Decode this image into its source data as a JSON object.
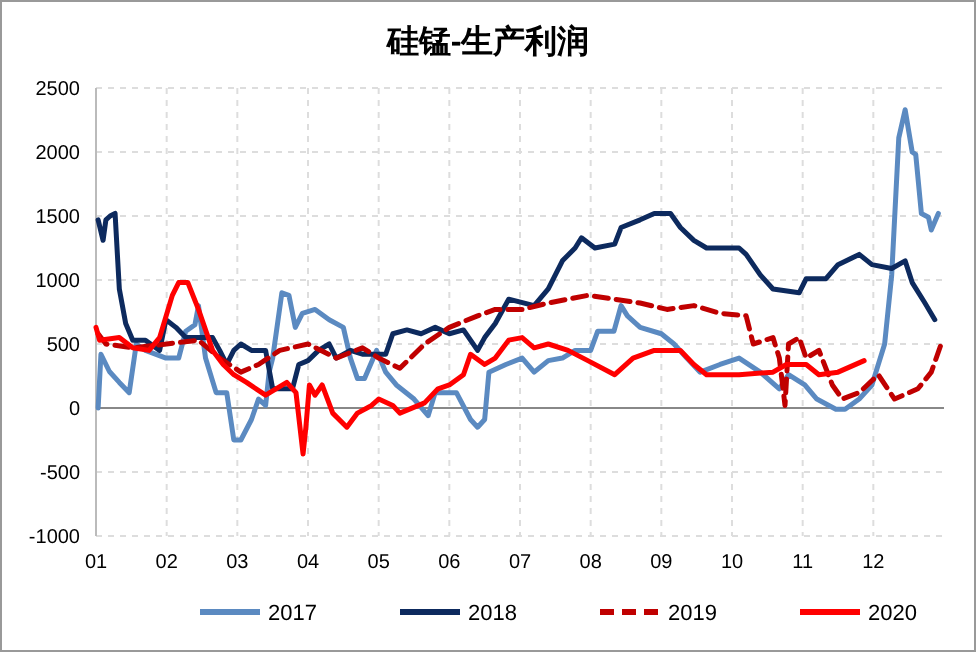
{
  "chart_data": {
    "type": "line",
    "title": "硅锰-生产利润",
    "xlim": [
      1,
      13
    ],
    "xticks": [
      {
        "value": 1,
        "label": "01"
      },
      {
        "value": 2,
        "label": "02"
      },
      {
        "value": 3,
        "label": "03"
      },
      {
        "value": 4,
        "label": "04"
      },
      {
        "value": 5,
        "label": "05"
      },
      {
        "value": 6,
        "label": "06"
      },
      {
        "value": 7,
        "label": "07"
      },
      {
        "value": 8,
        "label": "08"
      },
      {
        "value": 9,
        "label": "09"
      },
      {
        "value": 10,
        "label": "10"
      },
      {
        "value": 11,
        "label": "11"
      },
      {
        "value": 12,
        "label": "12"
      }
    ],
    "ylim": [
      -1000,
      2500
    ],
    "yticks": [
      -1000,
      -500,
      0,
      500,
      1000,
      1500,
      2000,
      2500
    ],
    "grid": true,
    "legend": "bottom",
    "marker": "none",
    "series": [
      {
        "name": "2017",
        "color": "#5b8ac1",
        "line_style": "solid",
        "x": [
          1.03,
          1.07,
          1.19,
          1.33,
          1.47,
          1.57,
          1.7,
          1.99,
          2.17,
          2.27,
          2.4,
          2.45,
          2.55,
          2.7,
          2.85,
          2.95,
          3.05,
          3.2,
          3.3,
          3.4,
          3.45,
          3.5,
          3.63,
          3.73,
          3.82,
          3.92,
          4.1,
          4.3,
          4.5,
          4.6,
          4.7,
          4.8,
          4.97,
          5.1,
          5.25,
          5.5,
          5.7,
          5.8,
          6.1,
          6.3,
          6.4,
          6.5,
          6.56,
          6.8,
          7.03,
          7.2,
          7.4,
          7.6,
          7.78,
          8.0,
          8.1,
          8.33,
          8.43,
          8.52,
          8.7,
          9.0,
          9.18,
          9.36,
          9.55,
          9.83,
          10.1,
          10.4,
          10.67,
          10.8,
          11.03,
          11.2,
          11.47,
          11.6,
          11.8,
          11.98,
          12.16,
          12.26,
          12.36,
          12.45,
          12.55,
          12.6,
          12.68,
          12.78,
          12.82,
          12.92
        ],
        "values": [
          0,
          420,
          285,
          200,
          120,
          500,
          450,
          390,
          390,
          600,
          650,
          800,
          390,
          120,
          120,
          -250,
          -250,
          -90,
          70,
          20,
          280,
          390,
          900,
          880,
          630,
          740,
          770,
          690,
          630,
          390,
          230,
          230,
          450,
          280,
          180,
          70,
          -60,
          120,
          120,
          -90,
          -150,
          -90,
          280,
          340,
          390,
          280,
          370,
          390,
          450,
          450,
          600,
          600,
          800,
          720,
          630,
          580,
          500,
          390,
          280,
          340,
          390,
          280,
          150,
          260,
          180,
          70,
          -10,
          -10,
          70,
          180,
          500,
          1040,
          2110,
          2330,
          2000,
          1980,
          1520,
          1490,
          1390,
          1520
        ]
      },
      {
        "name": "2018",
        "color": "#0d2a5e",
        "line_style": "solid",
        "x": [
          1.03,
          1.1,
          1.14,
          1.2,
          1.27,
          1.33,
          1.42,
          1.52,
          1.7,
          1.9,
          1.99,
          2.13,
          2.27,
          2.65,
          2.75,
          2.85,
          2.95,
          3.05,
          3.2,
          3.4,
          3.5,
          3.78,
          3.87,
          4.0,
          4.15,
          4.3,
          4.4,
          4.6,
          4.77,
          4.96,
          5.1,
          5.2,
          5.4,
          5.6,
          5.8,
          6.0,
          6.2,
          6.3,
          6.4,
          6.5,
          6.65,
          6.84,
          7.2,
          7.4,
          7.6,
          7.78,
          7.87,
          8.06,
          8.34,
          8.43,
          8.7,
          8.9,
          9.13,
          9.27,
          9.46,
          9.64,
          10.1,
          10.2,
          10.4,
          10.58,
          10.95,
          11.05,
          11.33,
          11.5,
          11.8,
          11.98,
          12.26,
          12.45,
          12.55,
          12.73,
          12.87
        ],
        "values": [
          1470,
          1310,
          1470,
          1500,
          1520,
          930,
          660,
          530,
          530,
          450,
          690,
          630,
          550,
          550,
          450,
          340,
          450,
          500,
          450,
          450,
          150,
          150,
          340,
          370,
          450,
          500,
          390,
          450,
          420,
          420,
          420,
          580,
          610,
          580,
          630,
          580,
          610,
          530,
          450,
          550,
          660,
          850,
          800,
          930,
          1150,
          1250,
          1330,
          1250,
          1280,
          1410,
          1470,
          1520,
          1520,
          1410,
          1310,
          1250,
          1250,
          1200,
          1040,
          930,
          900,
          1010,
          1010,
          1120,
          1200,
          1120,
          1090,
          1150,
          980,
          820,
          690
        ]
      },
      {
        "name": "2019",
        "color": "#c00000",
        "line_style": "dashed",
        "x": [
          1.03,
          1.14,
          1.52,
          2.0,
          2.45,
          2.75,
          3.05,
          3.3,
          3.6,
          4.0,
          4.4,
          4.77,
          5.0,
          5.3,
          5.65,
          6.0,
          6.4,
          6.65,
          7.03,
          7.4,
          7.96,
          8.34,
          8.7,
          9.08,
          9.46,
          9.83,
          10.2,
          10.3,
          10.58,
          10.67,
          10.75,
          10.8,
          10.95,
          11.05,
          11.23,
          11.42,
          11.56,
          11.8,
          12.07,
          12.3,
          12.63,
          12.82,
          12.96
        ],
        "values": [
          580,
          500,
          470,
          500,
          530,
          390,
          280,
          340,
          450,
          500,
          390,
          470,
          390,
          310,
          500,
          630,
          720,
          770,
          770,
          820,
          880,
          850,
          820,
          770,
          800,
          740,
          720,
          500,
          550,
          390,
          20,
          500,
          550,
          390,
          450,
          180,
          70,
          120,
          260,
          70,
          150,
          280,
          500
        ]
      },
      {
        "name": "2020",
        "color": "#ff0000",
        "line_style": "solid",
        "x": [
          1.0,
          1.05,
          1.33,
          1.52,
          1.75,
          1.9,
          2.08,
          2.17,
          2.3,
          2.45,
          2.55,
          2.65,
          2.8,
          2.95,
          3.13,
          3.4,
          3.7,
          3.83,
          3.93,
          3.97,
          4.02,
          4.1,
          4.2,
          4.35,
          4.55,
          4.7,
          4.9,
          5.0,
          5.2,
          5.3,
          5.65,
          5.84,
          6.0,
          6.2,
          6.3,
          6.5,
          6.65,
          6.84,
          7.03,
          7.2,
          7.4,
          7.68,
          7.96,
          8.34,
          8.6,
          8.9,
          9.27,
          9.46,
          9.64,
          10.1,
          10.58,
          10.77,
          11.05,
          11.23,
          11.5,
          11.87
        ],
        "values": [
          630,
          530,
          550,
          470,
          450,
          550,
          880,
          980,
          980,
          770,
          610,
          450,
          340,
          260,
          200,
          100,
          200,
          120,
          -360,
          -150,
          180,
          100,
          180,
          -40,
          -150,
          -40,
          20,
          70,
          20,
          -40,
          40,
          150,
          180,
          260,
          420,
          340,
          390,
          530,
          550,
          470,
          500,
          450,
          370,
          260,
          390,
          450,
          450,
          340,
          260,
          260,
          280,
          340,
          340,
          260,
          280,
          370
        ]
      }
    ]
  }
}
